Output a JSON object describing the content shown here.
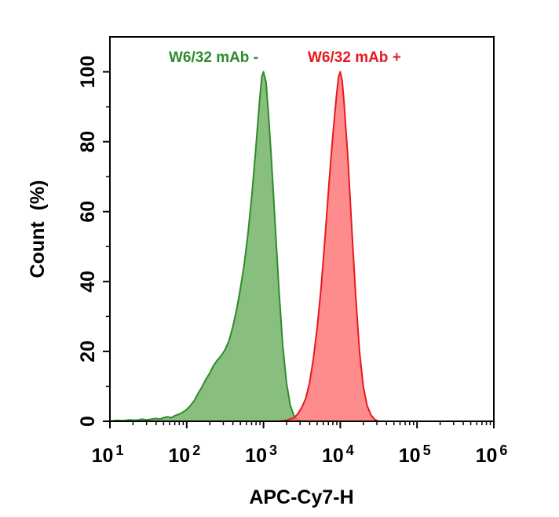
{
  "chart_data": {
    "type": "area",
    "title": "",
    "xlabel": "APC-Cy7-H",
    "ylabel": "Count  (%)",
    "x_scale": "log10",
    "xlim": [
      10,
      1000000
    ],
    "ylim": [
      0,
      110
    ],
    "x_ticks": [
      {
        "value": 10,
        "base": "10",
        "exp": "1"
      },
      {
        "value": 100,
        "base": "10",
        "exp": "2"
      },
      {
        "value": 1000,
        "base": "10",
        "exp": "3"
      },
      {
        "value": 10000,
        "base": "10",
        "exp": "4"
      },
      {
        "value": 100000,
        "base": "10",
        "exp": "5"
      },
      {
        "value": 1000000,
        "base": "10",
        "exp": "6"
      }
    ],
    "y_ticks": [
      {
        "value": 0,
        "label": "0"
      },
      {
        "value": 20,
        "label": "20"
      },
      {
        "value": 40,
        "label": "40"
      },
      {
        "value": 60,
        "label": "60"
      },
      {
        "value": 80,
        "label": "80"
      },
      {
        "value": 100,
        "label": "100"
      }
    ],
    "grid": false,
    "legend_position": "top",
    "series": [
      {
        "name": "W6/32 mAb -",
        "line_color": "#2e8b2e",
        "fill_color": "#6aaf5f",
        "fill_opacity": 0.8,
        "points": [
          [
            10,
            0
          ],
          [
            12,
            0.3
          ],
          [
            15,
            0.2
          ],
          [
            18,
            0.4
          ],
          [
            22,
            0.3
          ],
          [
            26,
            0.6
          ],
          [
            30,
            0.4
          ],
          [
            35,
            0.6
          ],
          [
            40,
            0.8
          ],
          [
            45,
            0.6
          ],
          [
            50,
            1.0
          ],
          [
            56,
            1.3
          ],
          [
            63,
            1.0
          ],
          [
            70,
            1.6
          ],
          [
            79,
            2.0
          ],
          [
            89,
            2.6
          ],
          [
            100,
            3.4
          ],
          [
            112,
            4.5
          ],
          [
            126,
            6.0
          ],
          [
            141,
            8.0
          ],
          [
            158,
            9.8
          ],
          [
            178,
            12.0
          ],
          [
            200,
            13.8
          ],
          [
            224,
            16.0
          ],
          [
            251,
            17.5
          ],
          [
            282,
            18.8
          ],
          [
            316,
            20.5
          ],
          [
            355,
            23.0
          ],
          [
            398,
            27.0
          ],
          [
            447,
            32.0
          ],
          [
            501,
            38.0
          ],
          [
            562,
            45.0
          ],
          [
            631,
            54.0
          ],
          [
            708,
            65.0
          ],
          [
            794,
            78.0
          ],
          [
            891,
            92.0
          ],
          [
            950,
            98.5
          ],
          [
            1000,
            100
          ],
          [
            1080,
            97.0
          ],
          [
            1160,
            88.0
          ],
          [
            1259,
            76.0
          ],
          [
            1413,
            57.0
          ],
          [
            1585,
            38.0
          ],
          [
            1778,
            22.0
          ],
          [
            1995,
            11.0
          ],
          [
            2239,
            4.5
          ],
          [
            2512,
            1.5
          ],
          [
            2818,
            0.4
          ],
          [
            3162,
            0
          ]
        ]
      },
      {
        "name": "W6/32 mAb +",
        "line_color": "#e8191e",
        "fill_color": "#ff6f6f",
        "fill_opacity": 0.8,
        "points": [
          [
            1585,
            0
          ],
          [
            1995,
            0.3
          ],
          [
            2512,
            1.0
          ],
          [
            2818,
            2.2
          ],
          [
            3162,
            4.0
          ],
          [
            3548,
            6.5
          ],
          [
            3981,
            11.0
          ],
          [
            4467,
            18.0
          ],
          [
            5012,
            27.0
          ],
          [
            5623,
            38.0
          ],
          [
            6310,
            52.0
          ],
          [
            7079,
            67.0
          ],
          [
            7943,
            81.0
          ],
          [
            8913,
            93.0
          ],
          [
            9500,
            98.5
          ],
          [
            10000,
            100
          ],
          [
            10593,
            97.5
          ],
          [
            11220,
            91.0
          ],
          [
            12589,
            75.0
          ],
          [
            14125,
            55.0
          ],
          [
            15849,
            36.0
          ],
          [
            17783,
            20.0
          ],
          [
            19953,
            10.0
          ],
          [
            22387,
            4.5
          ],
          [
            25119,
            1.8
          ],
          [
            28184,
            0.5
          ],
          [
            31623,
            0
          ]
        ]
      }
    ]
  }
}
